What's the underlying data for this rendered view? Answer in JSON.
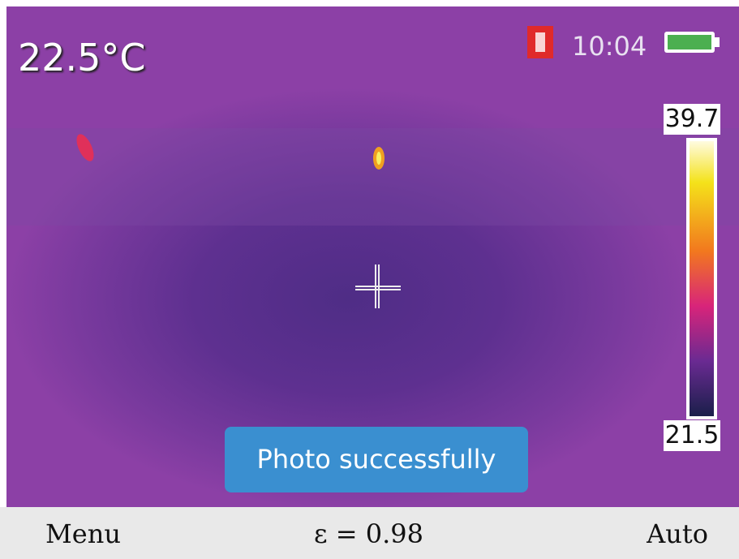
{
  "status": {
    "temperature": "22.5°C",
    "time": "10:04"
  },
  "scale": {
    "max": "39.7",
    "min": "21.5"
  },
  "toast": "Photo successfully",
  "footer": {
    "left": "Menu",
    "center": "ε = 0.98",
    "right": "Auto"
  }
}
